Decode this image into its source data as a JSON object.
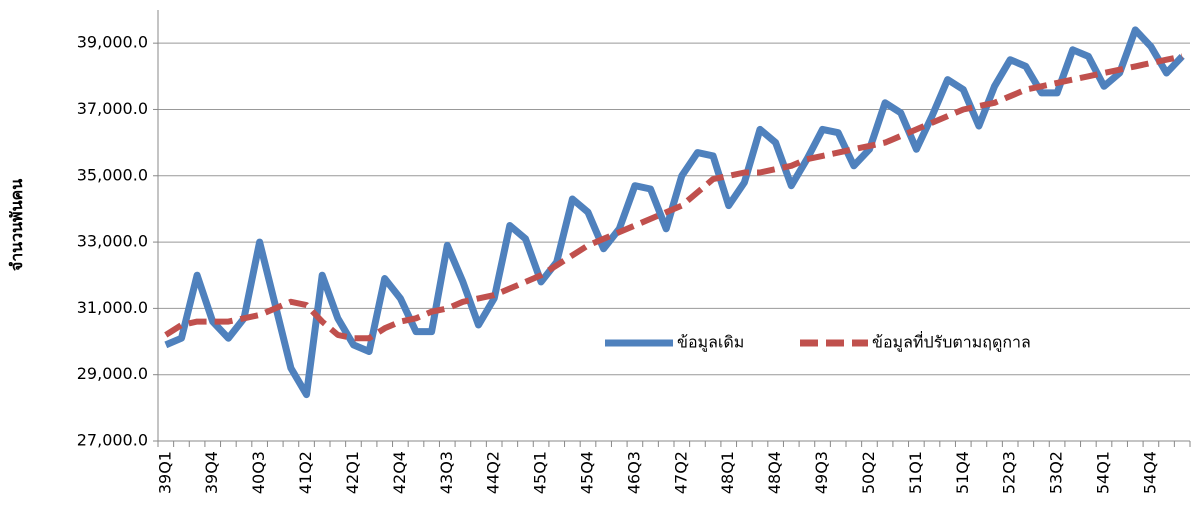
{
  "chart_data": {
    "type": "line",
    "y_label": "จำนวนพันคน",
    "categories": [
      "39Q1",
      null,
      null,
      "39Q4",
      null,
      null,
      "40Q3",
      null,
      null,
      "41Q2",
      null,
      null,
      "42Q1",
      null,
      null,
      "42Q4",
      null,
      null,
      "43Q3",
      null,
      null,
      "44Q2",
      null,
      null,
      "45Q1",
      null,
      null,
      "45Q4",
      null,
      null,
      "46Q3",
      null,
      null,
      "47Q2",
      null,
      null,
      "48Q1",
      null,
      null,
      "48Q4",
      null,
      null,
      "49Q3",
      null,
      null,
      "50Q2",
      null,
      null,
      "51Q1",
      null,
      null,
      "51Q4",
      null,
      null,
      "52Q3",
      null,
      null,
      "53Q2",
      null,
      null,
      "54Q1",
      null,
      null,
      "54Q4",
      null,
      null
    ],
    "series": [
      {
        "name": "ข้อมูลเดิม",
        "color": "#4f81bd",
        "dash": false,
        "values": [
          29900,
          30100,
          32000,
          30600,
          30100,
          30700,
          33000,
          31100,
          29200,
          28400,
          32000,
          30700,
          29900,
          29700,
          31900,
          31300,
          30300,
          30300,
          32900,
          31800,
          30500,
          31300,
          33500,
          33100,
          31800,
          32400,
          34300,
          33900,
          32800,
          33400,
          34700,
          34600,
          33400,
          35000,
          35700,
          35600,
          34100,
          34800,
          36400,
          36000,
          34700,
          35500,
          36400,
          36300,
          35300,
          35800,
          37200,
          36900,
          35800,
          36800,
          37900,
          37600,
          36500,
          37700,
          38500,
          38300,
          37500,
          37500,
          38800,
          38600,
          37700,
          38100,
          39400,
          38900,
          38100,
          38600
        ]
      },
      {
        "name": "ข้อมูลที่ปรับตามฤดูกาล",
        "color": "#c0504d",
        "dash": true,
        "values": [
          30200,
          30500,
          30600,
          30600,
          30600,
          30700,
          30800,
          31000,
          31200,
          31100,
          30600,
          30200,
          30100,
          30100,
          30400,
          30600,
          30700,
          30900,
          31000,
          31200,
          31300,
          31400,
          31600,
          31800,
          32000,
          32300,
          32600,
          32900,
          33100,
          33300,
          33500,
          33700,
          33900,
          34100,
          34500,
          34900,
          35000,
          35100,
          35100,
          35200,
          35300,
          35500,
          35600,
          35700,
          35800,
          35900,
          36000,
          36200,
          36400,
          36600,
          36800,
          37000,
          37100,
          37200,
          37400,
          37600,
          37700,
          37800,
          37900,
          38000,
          38100,
          38200,
          38300,
          38400,
          38500,
          38600
        ]
      }
    ],
    "ylim": [
      27000,
      40000
    ],
    "yticks": [
      {
        "value": 27000,
        "label": "27,000.0"
      },
      {
        "value": 29000,
        "label": "29,000.0"
      },
      {
        "value": 31000,
        "label": "31,000.0"
      },
      {
        "value": 33000,
        "label": "33,000.0"
      },
      {
        "value": 35000,
        "label": "35,000.0"
      },
      {
        "value": 37000,
        "label": "37,000.0"
      },
      {
        "value": 39000,
        "label": "39,000.0"
      }
    ],
    "grid": true,
    "legend": "center-right"
  }
}
